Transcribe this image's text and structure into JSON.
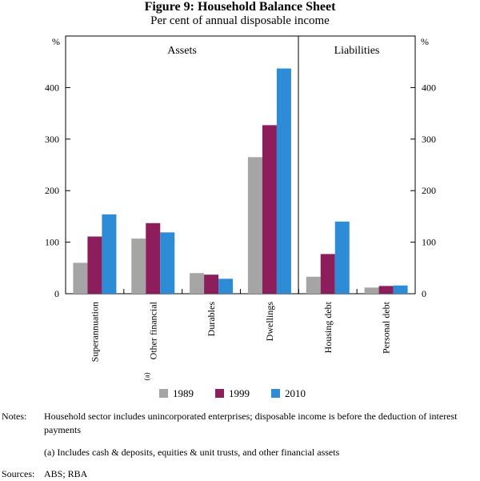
{
  "title": "Figure 9: Household Balance Sheet",
  "subtitle": "Per cent of annual disposable income",
  "chart_data": {
    "type": "bar",
    "panels": [
      {
        "label": "Assets",
        "categories": [
          "Superannuation",
          "Other financial",
          "Durables",
          "Dwellings"
        ]
      },
      {
        "label": "Liabilities",
        "categories": [
          "Housing debt",
          "Personal debt"
        ]
      }
    ],
    "category_superscripts": {
      "Other financial": "(a)"
    },
    "series": [
      {
        "name": "1989",
        "color": "#a5a5a5",
        "values": [
          60,
          107,
          40,
          265,
          33,
          12
        ]
      },
      {
        "name": "1999",
        "color": "#8b1e5b",
        "values": [
          111,
          137,
          37,
          327,
          77,
          15
        ]
      },
      {
        "name": "2010",
        "color": "#2e8bd6",
        "values": [
          154,
          119,
          29,
          437,
          140,
          16
        ]
      }
    ],
    "ylim": [
      0,
      500
    ],
    "yticks": [
      0,
      100,
      200,
      300,
      400
    ],
    "ylabel_left": "%",
    "ylabel_right": "%",
    "legend_position": "bottom"
  },
  "notes": {
    "label": "Notes:",
    "text": "Household sector includes unincorporated enterprises; disposable income is before the deduction of interest payments",
    "footnote": "(a) Includes cash & deposits, equities & unit trusts, and other financial assets"
  },
  "sources": {
    "label": "Sources:",
    "text": "ABS; RBA"
  }
}
